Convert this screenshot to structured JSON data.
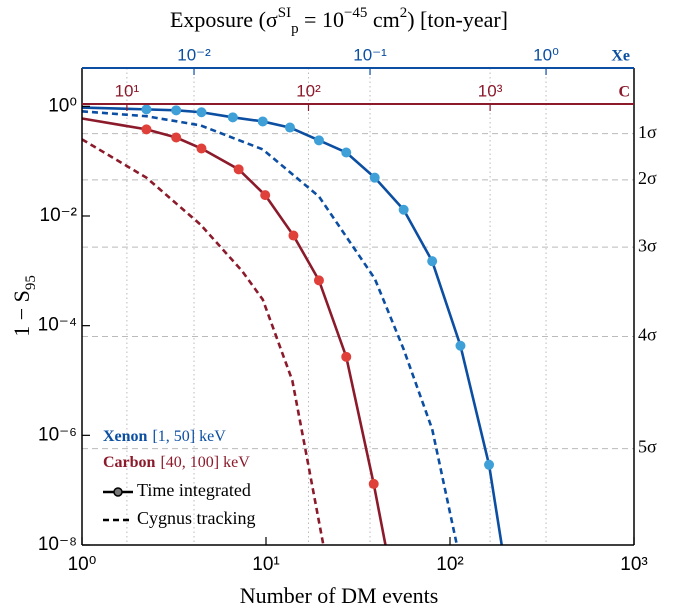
{
  "chart_data": {
    "type": "line",
    "x_label": "Number of DM events",
    "y_label_parts": [
      {
        "text": "1 − S",
        "shift": "normal"
      },
      {
        "text": "95",
        "shift": "sub"
      }
    ],
    "top_title_parts": [
      {
        "text": "Exposure (",
        "shift": "normal"
      },
      {
        "text": "σ",
        "shift": "normal"
      },
      {
        "text": "SI",
        "shift": "sup"
      },
      {
        "text": "p",
        "shift": "sub"
      },
      {
        "text": " = 10",
        "shift": "normal"
      },
      {
        "text": "−45",
        "shift": "sup"
      },
      {
        "text": " cm",
        "shift": "normal"
      },
      {
        "text": "2",
        "shift": "sup"
      },
      {
        "text": ") [ton-year]",
        "shift": "normal"
      }
    ],
    "log_x": true,
    "log_y": true,
    "grid": true,
    "xlim": [
      1,
      1000
    ],
    "ylim": [
      1e-08,
      5
    ],
    "xticks": [
      {
        "value": 1,
        "label": "10⁰"
      },
      {
        "value": 10,
        "label": "10¹"
      },
      {
        "value": 100,
        "label": "10²"
      },
      {
        "value": 1000,
        "label": "10³"
      }
    ],
    "yticks": [
      {
        "value": 1,
        "label": "10⁰"
      },
      {
        "value": 0.01,
        "label": "10⁻²"
      },
      {
        "value": 0.0001,
        "label": "10⁻⁴"
      },
      {
        "value": 1e-06,
        "label": "10⁻⁶"
      },
      {
        "value": 1e-08,
        "label": "10⁻⁸"
      }
    ],
    "top_axes": [
      {
        "name": "Xe",
        "color": "#0b4ea2",
        "xlim": [
          0.00231,
          3.16
        ],
        "xticks": [
          {
            "value": 0.01,
            "label": "10⁻²"
          },
          {
            "value": 0.1,
            "label": "10⁻¹"
          },
          {
            "value": 1,
            "label": "10⁰"
          }
        ]
      },
      {
        "name": "C",
        "color": "#8b1a2b",
        "xlim": [
          5.66,
          6200
        ],
        "xticks": [
          {
            "value": 10,
            "label": "10¹"
          },
          {
            "value": 100,
            "label": "10²"
          },
          {
            "value": 1000,
            "label": "10³"
          }
        ]
      }
    ],
    "sigma_lines": [
      {
        "value": 0.317,
        "label": "1σ"
      },
      {
        "value": 0.0455,
        "label": "2σ"
      },
      {
        "value": 0.0027,
        "label": "3σ"
      },
      {
        "value": 6.33e-05,
        "label": "4σ"
      },
      {
        "value": 5.73e-07,
        "label": "5σ"
      }
    ],
    "targets": [
      {
        "name": "Xenon",
        "range": "[1, 50] keV",
        "color": "#0b4ea2",
        "marker_color": "#3fa0d8"
      },
      {
        "name": "Carbon",
        "range": "[40, 100] keV",
        "color": "#8b1a2b",
        "marker_color": "#e0403a"
      }
    ],
    "styles": [
      {
        "name": "Time integrated",
        "dash": false,
        "markers": true
      },
      {
        "name": "Cygnus tracking",
        "dash": true,
        "markers": false
      }
    ],
    "series": [
      {
        "target": "Xenon",
        "style": "Time integrated",
        "x": [
          1,
          2.24,
          3.25,
          4.46,
          6.6,
          9.6,
          13.5,
          19.4,
          27.3,
          39,
          56,
          80,
          114,
          163,
          191
        ],
        "values": [
          0.95,
          0.88,
          0.845,
          0.78,
          0.63,
          0.53,
          0.41,
          0.24,
          0.144,
          0.05,
          0.013,
          0.0015,
          4.3e-05,
          2.9e-07,
          1e-08
        ]
      },
      {
        "target": "Carbon",
        "style": "Time integrated",
        "x": [
          1,
          2.24,
          3.25,
          4.46,
          7.1,
          9.9,
          14.1,
          19.4,
          27.3,
          38.5,
          44.6
        ],
        "values": [
          0.6,
          0.38,
          0.27,
          0.17,
          0.071,
          0.024,
          0.0044,
          0.00067,
          2.7e-05,
          1.3e-07,
          1e-08
        ]
      },
      {
        "target": "Xenon",
        "style": "Cygnus tracking",
        "x": [
          1,
          2.24,
          4.4,
          9.6,
          19.4,
          39,
          56,
          80,
          109
        ],
        "values": [
          0.81,
          0.66,
          0.45,
          0.164,
          0.0227,
          0.00072,
          3.7e-05,
          1.3e-06,
          1e-08
        ]
      },
      {
        "target": "Carbon",
        "style": "Cygnus tracking",
        "x": [
          1,
          2.24,
          4.4,
          7.4,
          9.6,
          13.9,
          16.8,
          20.5
        ],
        "values": [
          0.25,
          0.05,
          0.007,
          0.001,
          0.0003,
          1e-05,
          3.5e-07,
          1e-08
        ]
      }
    ]
  }
}
